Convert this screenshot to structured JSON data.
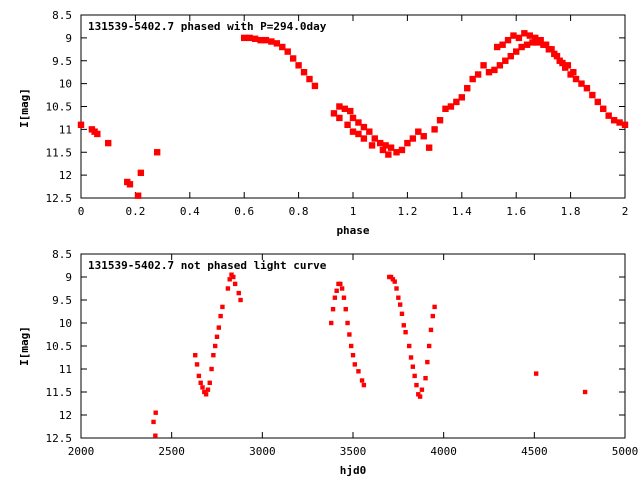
{
  "marker_color": "#ff0000",
  "chart_data": [
    {
      "type": "scatter",
      "title": "131539-5402.7 phased with P=294.0day",
      "xlabel": "phase",
      "ylabel": "I[mag]",
      "xlim": [
        0,
        2
      ],
      "ylim": [
        8.5,
        12.5
      ],
      "y_inverted": true,
      "grid": false,
      "x_ticks": [
        "0",
        "0.2",
        "0.4",
        "0.6",
        "0.8",
        "1",
        "1.2",
        "1.4",
        "1.6",
        "1.8",
        "2"
      ],
      "y_ticks": [
        "8.5",
        "9",
        "9.5",
        "10",
        "10.5",
        "11",
        "11.5",
        "12",
        "12.5"
      ],
      "series": [
        {
          "points": [
            [
              0.0,
              10.9
            ],
            [
              0.04,
              11.0
            ],
            [
              0.05,
              11.05
            ],
            [
              0.06,
              11.1
            ],
            [
              0.1,
              11.3
            ],
            [
              0.17,
              12.15
            ],
            [
              0.18,
              12.2
            ],
            [
              0.21,
              12.45
            ],
            [
              0.22,
              11.95
            ],
            [
              0.28,
              11.5
            ],
            [
              0.6,
              9.0
            ],
            [
              0.62,
              9.0
            ],
            [
              0.64,
              9.02
            ],
            [
              0.66,
              9.05
            ],
            [
              0.68,
              9.05
            ],
            [
              0.7,
              9.08
            ],
            [
              0.72,
              9.12
            ],
            [
              0.74,
              9.2
            ],
            [
              0.76,
              9.3
            ],
            [
              0.78,
              9.45
            ],
            [
              0.8,
              9.6
            ],
            [
              0.82,
              9.75
            ],
            [
              0.84,
              9.9
            ],
            [
              0.86,
              10.05
            ],
            [
              0.93,
              10.65
            ],
            [
              0.95,
              10.5
            ],
            [
              0.97,
              10.55
            ],
            [
              0.99,
              10.6
            ],
            [
              1.0,
              10.75
            ],
            [
              1.02,
              10.85
            ],
            [
              1.04,
              10.95
            ],
            [
              1.06,
              11.05
            ],
            [
              1.08,
              11.2
            ],
            [
              1.1,
              11.3
            ],
            [
              1.12,
              11.35
            ],
            [
              1.14,
              11.4
            ],
            [
              1.16,
              11.5
            ],
            [
              1.18,
              11.45
            ],
            [
              1.2,
              11.3
            ],
            [
              1.22,
              11.2
            ],
            [
              1.24,
              11.05
            ],
            [
              1.26,
              11.15
            ],
            [
              1.28,
              11.4
            ],
            [
              1.3,
              11.0
            ],
            [
              1.32,
              10.8
            ],
            [
              1.34,
              10.55
            ],
            [
              1.36,
              10.5
            ],
            [
              1.38,
              10.4
            ],
            [
              1.4,
              10.3
            ],
            [
              1.42,
              10.1
            ],
            [
              1.44,
              9.9
            ],
            [
              1.46,
              9.8
            ],
            [
              1.48,
              9.6
            ],
            [
              1.5,
              9.75
            ],
            [
              1.52,
              9.7
            ],
            [
              1.54,
              9.6
            ],
            [
              1.56,
              9.5
            ],
            [
              1.58,
              9.4
            ],
            [
              1.6,
              9.3
            ],
            [
              1.62,
              9.2
            ],
            [
              1.64,
              9.15
            ],
            [
              1.66,
              9.1
            ],
            [
              1.68,
              9.1
            ],
            [
              1.7,
              9.15
            ],
            [
              1.72,
              9.25
            ],
            [
              1.74,
              9.35
            ],
            [
              1.76,
              9.5
            ],
            [
              1.78,
              9.65
            ],
            [
              1.8,
              9.8
            ],
            [
              1.82,
              9.9
            ],
            [
              1.84,
              10.0
            ],
            [
              1.86,
              10.1
            ],
            [
              1.88,
              10.25
            ],
            [
              1.9,
              10.4
            ],
            [
              1.92,
              10.55
            ],
            [
              1.94,
              10.7
            ],
            [
              1.96,
              10.8
            ],
            [
              1.98,
              10.85
            ],
            [
              2.0,
              10.9
            ],
            [
              0.95,
              10.75
            ],
            [
              0.98,
              10.9
            ],
            [
              1.0,
              11.05
            ],
            [
              1.02,
              11.1
            ],
            [
              1.04,
              11.2
            ],
            [
              1.07,
              11.35
            ],
            [
              1.11,
              11.45
            ],
            [
              1.13,
              11.55
            ],
            [
              1.53,
              9.2
            ],
            [
              1.55,
              9.15
            ],
            [
              1.57,
              9.05
            ],
            [
              1.59,
              8.95
            ],
            [
              1.61,
              9.0
            ],
            [
              1.63,
              8.9
            ],
            [
              1.65,
              8.95
            ],
            [
              1.67,
              9.0
            ],
            [
              1.69,
              9.05
            ],
            [
              1.71,
              9.15
            ],
            [
              1.73,
              9.25
            ],
            [
              1.75,
              9.4
            ],
            [
              1.77,
              9.55
            ],
            [
              1.79,
              9.6
            ],
            [
              1.81,
              9.75
            ]
          ]
        }
      ]
    },
    {
      "type": "scatter",
      "title": "131539-5402.7 not phased light curve",
      "xlabel": "hjd0",
      "ylabel": "I[mag]",
      "xlim": [
        2000,
        5000
      ],
      "ylim": [
        8.5,
        12.5
      ],
      "y_inverted": true,
      "grid": false,
      "x_ticks": [
        "2000",
        "2500",
        "3000",
        "3500",
        "4000",
        "4500",
        "5000"
      ],
      "y_ticks": [
        "8.5",
        "9",
        "9.5",
        "10",
        "10.5",
        "11",
        "11.5",
        "12",
        "12.5"
      ],
      "series": [
        {
          "points": [
            [
              2400,
              12.15
            ],
            [
              2410,
              12.45
            ],
            [
              2412,
              11.95
            ],
            [
              2630,
              10.7
            ],
            [
              2640,
              10.9
            ],
            [
              2650,
              11.15
            ],
            [
              2660,
              11.3
            ],
            [
              2670,
              11.4
            ],
            [
              2680,
              11.5
            ],
            [
              2690,
              11.55
            ],
            [
              2700,
              11.45
            ],
            [
              2710,
              11.3
            ],
            [
              2720,
              11.0
            ],
            [
              2730,
              10.7
            ],
            [
              2740,
              10.5
            ],
            [
              2750,
              10.3
            ],
            [
              2760,
              10.1
            ],
            [
              2770,
              9.85
            ],
            [
              2780,
              9.65
            ],
            [
              2810,
              9.25
            ],
            [
              2820,
              9.05
            ],
            [
              2830,
              8.95
            ],
            [
              2840,
              9.0
            ],
            [
              2850,
              9.15
            ],
            [
              2870,
              9.35
            ],
            [
              2880,
              9.5
            ],
            [
              3380,
              10.0
            ],
            [
              3390,
              9.7
            ],
            [
              3400,
              9.45
            ],
            [
              3410,
              9.3
            ],
            [
              3420,
              9.15
            ],
            [
              3430,
              9.15
            ],
            [
              3440,
              9.25
            ],
            [
              3450,
              9.45
            ],
            [
              3460,
              9.7
            ],
            [
              3470,
              10.0
            ],
            [
              3480,
              10.25
            ],
            [
              3490,
              10.5
            ],
            [
              3500,
              10.7
            ],
            [
              3510,
              10.9
            ],
            [
              3530,
              11.05
            ],
            [
              3550,
              11.25
            ],
            [
              3560,
              11.35
            ],
            [
              3700,
              9.0
            ],
            [
              3710,
              9.0
            ],
            [
              3720,
              9.05
            ],
            [
              3730,
              9.1
            ],
            [
              3740,
              9.25
            ],
            [
              3750,
              9.45
            ],
            [
              3760,
              9.6
            ],
            [
              3770,
              9.8
            ],
            [
              3780,
              10.05
            ],
            [
              3790,
              10.2
            ],
            [
              3810,
              10.5
            ],
            [
              3820,
              10.75
            ],
            [
              3830,
              10.95
            ],
            [
              3840,
              11.15
            ],
            [
              3850,
              11.35
            ],
            [
              3860,
              11.55
            ],
            [
              3870,
              11.6
            ],
            [
              3880,
              11.45
            ],
            [
              3900,
              11.2
            ],
            [
              3910,
              10.85
            ],
            [
              3920,
              10.5
            ],
            [
              3930,
              10.15
            ],
            [
              3940,
              9.85
            ],
            [
              3950,
              9.65
            ],
            [
              4510,
              11.1
            ],
            [
              4780,
              11.5
            ]
          ]
        }
      ]
    }
  ]
}
